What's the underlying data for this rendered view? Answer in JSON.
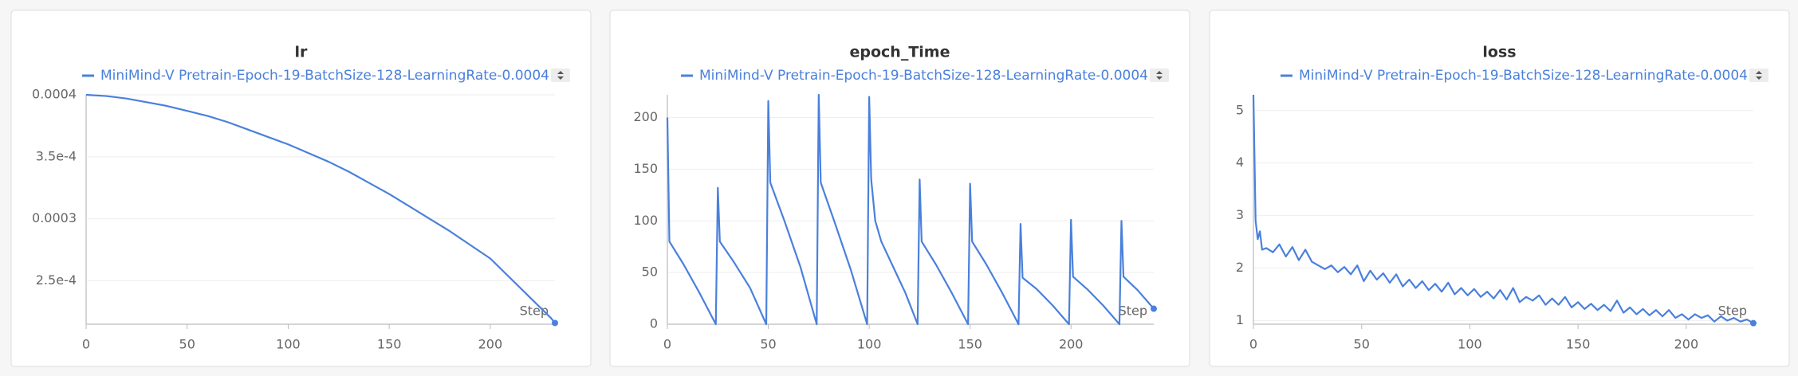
{
  "chart_data": [
    {
      "type": "line",
      "title": "lr",
      "xlabel": "Step",
      "grid": true,
      "x": [
        0,
        10,
        20,
        30,
        40,
        50,
        60,
        70,
        80,
        90,
        100,
        110,
        120,
        130,
        140,
        150,
        160,
        170,
        180,
        190,
        200,
        210,
        220,
        230,
        232
      ],
      "series": [
        {
          "name": "MiniMind-V Pretrain-Epoch-19-BatchSize-128-LearningRate-0.0004",
          "color": "#4a80dc",
          "values": [
            0.0004,
            0.000399,
            0.000397,
            0.000394,
            0.000391,
            0.000387,
            0.000383,
            0.000378,
            0.000372,
            0.000366,
            0.00036,
            0.000353,
            0.000346,
            0.000338,
            0.000329,
            0.00032,
            0.00031,
            0.0003,
            0.00029,
            0.000279,
            0.000268,
            0.000252,
            0.000236,
            0.00022,
            0.000216
          ]
        }
      ],
      "xlim": [
        0,
        232
      ],
      "xticks": [
        0,
        50,
        100,
        150,
        200
      ],
      "ylim": [
        0.000215,
        0.0004
      ],
      "yticks": [
        {
          "value": 0.00025,
          "label": "2.5e-4"
        },
        0.0003,
        {
          "value": 0.00035,
          "label": "3.5e-4"
        },
        0.0004
      ]
    },
    {
      "type": "line",
      "title": "epoch_Time",
      "xlabel": "Step",
      "grid": true,
      "x": [
        0,
        1,
        8,
        16,
        24,
        25,
        26,
        33,
        41,
        49,
        50,
        51,
        58,
        66,
        74,
        75,
        76,
        83,
        91,
        99,
        100,
        101,
        103,
        106,
        112,
        118,
        124,
        125,
        126,
        133,
        141,
        149,
        150,
        151,
        158,
        166,
        174,
        175,
        176,
        183,
        191,
        199,
        200,
        201,
        208,
        216,
        224,
        225,
        226,
        233,
        241
      ],
      "series": [
        {
          "name": "MiniMind-V Pretrain-Epoch-19-BatchSize-128-LearningRate-0.0004",
          "color": "#4a80dc",
          "values": [
            200,
            80,
            58,
            30,
            0,
            132,
            80,
            60,
            35,
            0,
            216,
            137,
            100,
            55,
            0,
            222,
            137,
            98,
            52,
            0,
            220,
            140,
            100,
            80,
            55,
            30,
            0,
            140,
            80,
            58,
            30,
            0,
            136,
            80,
            58,
            30,
            0,
            97,
            45,
            34,
            18,
            0,
            101,
            46,
            34,
            18,
            0,
            100,
            46,
            33,
            15
          ]
        }
      ],
      "xlim": [
        0,
        241
      ],
      "xticks": [
        0,
        50,
        100,
        150,
        200
      ],
      "ylim": [
        0,
        222
      ],
      "yticks": [
        0,
        50,
        100,
        150,
        200
      ]
    },
    {
      "type": "line",
      "title": "loss",
      "xlabel": "Step",
      "grid": true,
      "x": [
        0,
        1,
        2,
        3,
        4,
        6,
        9,
        12,
        15,
        18,
        21,
        24,
        27,
        30,
        33,
        36,
        39,
        42,
        45,
        48,
        51,
        54,
        57,
        60,
        63,
        66,
        69,
        72,
        75,
        78,
        81,
        84,
        87,
        90,
        93,
        96,
        99,
        102,
        105,
        108,
        111,
        114,
        117,
        120,
        123,
        126,
        129,
        132,
        135,
        138,
        141,
        144,
        147,
        150,
        153,
        156,
        159,
        162,
        165,
        168,
        171,
        174,
        177,
        180,
        183,
        186,
        189,
        192,
        195,
        198,
        201,
        204,
        207,
        210,
        213,
        216,
        219,
        222,
        225,
        228,
        231
      ],
      "series": [
        {
          "name": "MiniMind-V Pretrain-Epoch-19-BatchSize-128-LearningRate-0.0004",
          "color": "#4a80dc",
          "values": [
            5.3,
            2.9,
            2.55,
            2.7,
            2.35,
            2.38,
            2.3,
            2.45,
            2.22,
            2.4,
            2.15,
            2.35,
            2.12,
            2.05,
            1.98,
            2.05,
            1.92,
            2.02,
            1.88,
            2.05,
            1.75,
            1.95,
            1.78,
            1.9,
            1.72,
            1.88,
            1.65,
            1.78,
            1.62,
            1.75,
            1.58,
            1.7,
            1.55,
            1.72,
            1.5,
            1.62,
            1.48,
            1.6,
            1.45,
            1.55,
            1.42,
            1.58,
            1.4,
            1.62,
            1.35,
            1.45,
            1.38,
            1.48,
            1.3,
            1.42,
            1.3,
            1.45,
            1.25,
            1.35,
            1.22,
            1.32,
            1.2,
            1.3,
            1.18,
            1.38,
            1.15,
            1.25,
            1.12,
            1.22,
            1.1,
            1.2,
            1.08,
            1.2,
            1.05,
            1.12,
            1.02,
            1.12,
            1.05,
            1.1,
            0.98,
            1.08,
            1,
            1.05,
            0.98,
            1.02,
            0.95
          ]
        }
      ],
      "xlim": [
        0,
        231
      ],
      "xticks": [
        0,
        50,
        100,
        150,
        200
      ],
      "ylim": [
        0.93,
        5.3
      ],
      "yticks": [
        1,
        2,
        3,
        4,
        5
      ]
    }
  ]
}
